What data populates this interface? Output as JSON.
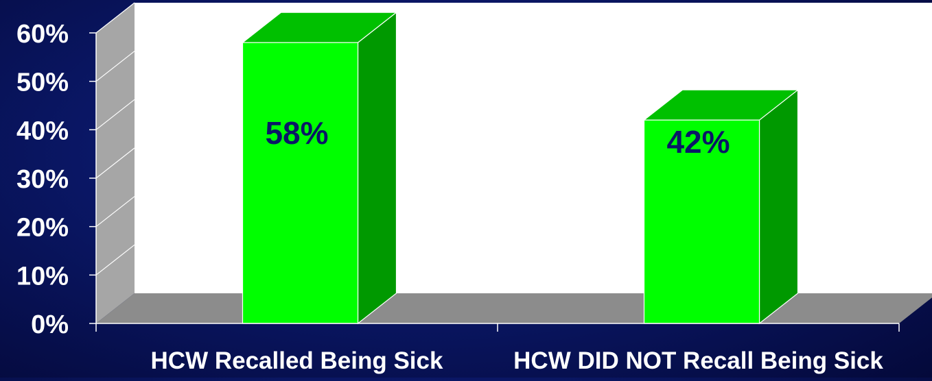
{
  "chart_data": {
    "type": "bar",
    "categories": [
      "HCW Recalled Being Sick",
      "HCW DID NOT Recall Being Sick"
    ],
    "values": [
      58,
      42
    ],
    "data_labels": [
      "58%",
      "42%"
    ],
    "ylim": [
      0,
      60
    ],
    "yticks": [
      {
        "value": 0,
        "label": "0%"
      },
      {
        "value": 10,
        "label": "10%"
      },
      {
        "value": 20,
        "label": "20%"
      },
      {
        "value": 30,
        "label": "30%"
      },
      {
        "value": 40,
        "label": "40%"
      },
      {
        "value": 50,
        "label": "50%"
      },
      {
        "value": 60,
        "label": "60%"
      }
    ],
    "title": "",
    "xlabel": "",
    "ylabel": "",
    "grid": true,
    "three_d": true,
    "colors": {
      "bar_front": "#00ff00",
      "bar_top": "#00c000",
      "bar_side": "#009900",
      "wall": "#a6a6a6",
      "floor": "#8c8c8c",
      "plot_back": "#ffffff",
      "tick_label": "#ffffff",
      "data_label": "#0a1766"
    }
  }
}
